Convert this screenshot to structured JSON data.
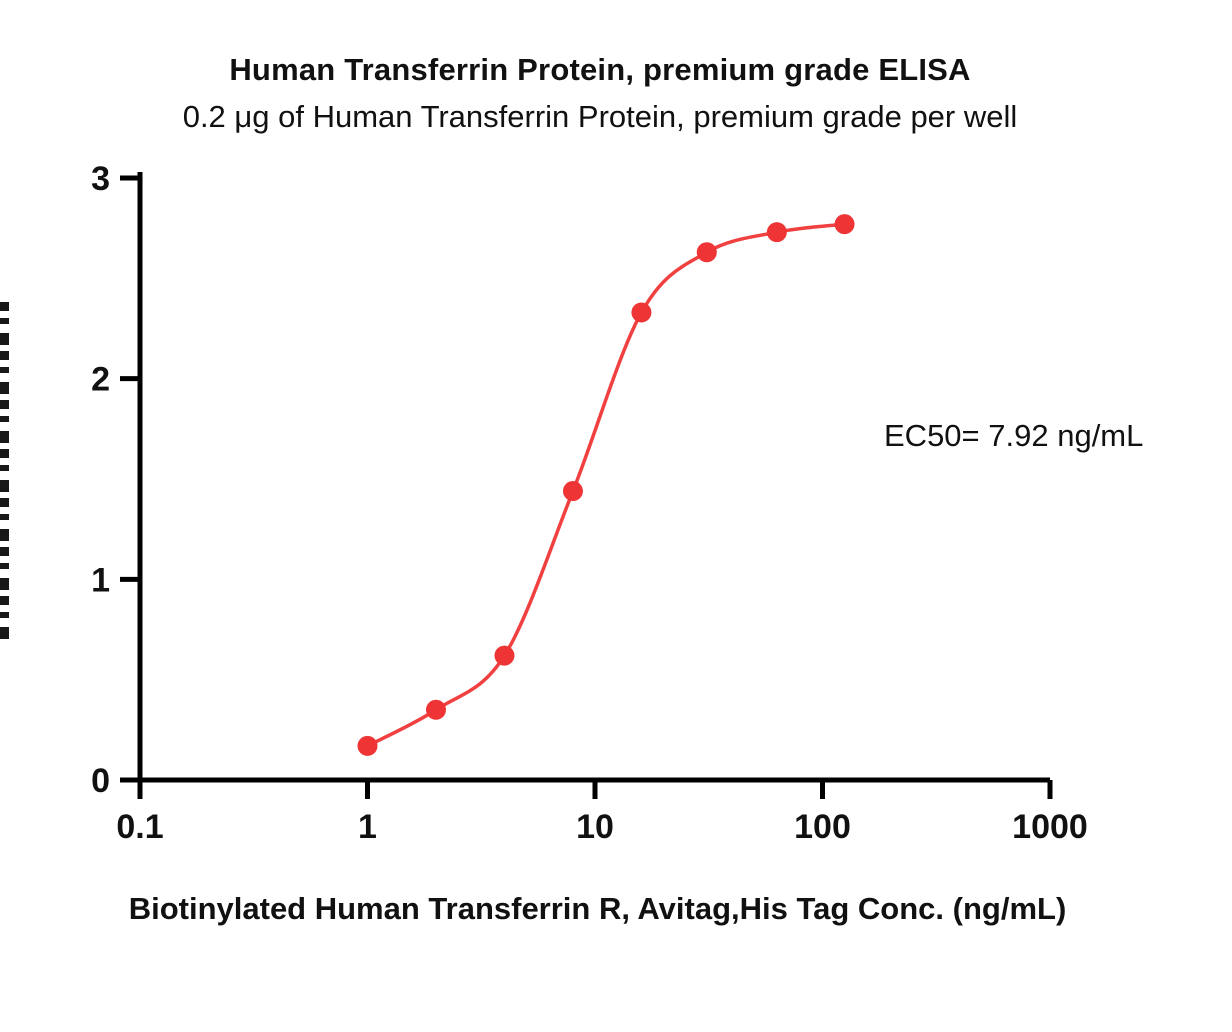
{
  "chart_data": {
    "type": "scatter",
    "title": "Human Transferrin Protein, premium grade ELISA",
    "subtitle": "0.2 μg of Human Transferrin Protein, premium grade per well",
    "xlabel": "Biotinylated Human Transferrin R, Avitag,His Tag Conc. (ng/mL)",
    "ylabel": "",
    "annotation": "EC50= 7.92 ng/mL",
    "ec50_ng_ml": 7.92,
    "x_scale": "log10",
    "xlim": [
      0.1,
      1000
    ],
    "ylim": [
      0,
      3
    ],
    "x_ticks": [
      0.1,
      1,
      10,
      100,
      1000
    ],
    "x_tick_labels": [
      "0.1",
      "1",
      "10",
      "100",
      "1000"
    ],
    "y_ticks": [
      0,
      1,
      2,
      3
    ],
    "y_tick_labels": [
      "0",
      "1",
      "2",
      "3"
    ],
    "grid": false,
    "legend": "none",
    "curve": "4PL sigmoid fit through points",
    "x": [
      1,
      2,
      4,
      8,
      16,
      31,
      63,
      125
    ],
    "y": [
      0.17,
      0.35,
      0.62,
      1.44,
      2.33,
      2.63,
      2.73,
      2.77
    ],
    "colors": {
      "curve": "#f14040",
      "point": "#ee3434",
      "axis": "#000000",
      "text": "#111111"
    }
  }
}
